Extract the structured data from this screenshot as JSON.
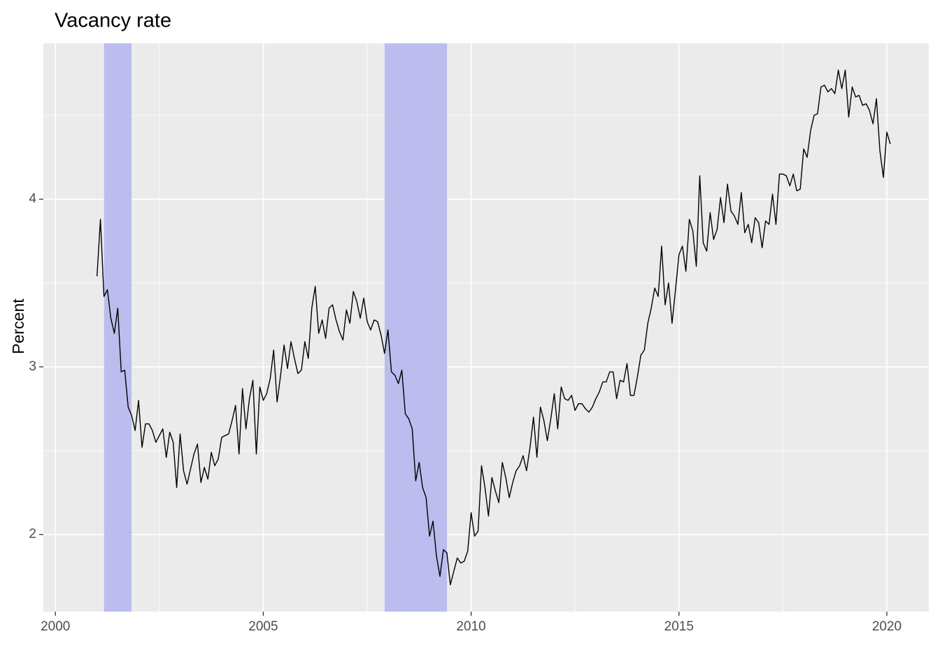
{
  "chart_data": {
    "type": "line",
    "title": "Vacancy rate",
    "y_label": "Percent",
    "color": "#000000",
    "shaded_ranges": [
      {
        "start": 2001.17,
        "end": 2001.83
      },
      {
        "start": 2007.92,
        "end": 2009.42
      }
    ],
    "shade_color": "#bcbcee",
    "xlim": [
      1999.71,
      2021.01
    ],
    "xticks": [
      2000,
      2005,
      2010,
      2015,
      2020
    ],
    "ylim": [
      1.54,
      4.93
    ],
    "yticks": [
      2,
      3,
      4
    ],
    "grid": true,
    "x": [
      2001,
      2001.083,
      2001.167,
      2001.25,
      2001.333,
      2001.417,
      2001.5,
      2001.583,
      2001.667,
      2001.75,
      2001.833,
      2001.917,
      2002,
      2002.083,
      2002.167,
      2002.25,
      2002.333,
      2002.417,
      2002.5,
      2002.583,
      2002.667,
      2002.75,
      2002.833,
      2002.917,
      2003,
      2003.083,
      2003.167,
      2003.25,
      2003.333,
      2003.417,
      2003.5,
      2003.583,
      2003.667,
      2003.75,
      2003.833,
      2003.917,
      2004,
      2004.083,
      2004.167,
      2004.25,
      2004.333,
      2004.417,
      2004.5,
      2004.583,
      2004.667,
      2004.75,
      2004.833,
      2004.917,
      2005,
      2005.083,
      2005.167,
      2005.25,
      2005.333,
      2005.417,
      2005.5,
      2005.583,
      2005.667,
      2005.75,
      2005.833,
      2005.917,
      2006,
      2006.083,
      2006.167,
      2006.25,
      2006.333,
      2006.417,
      2006.5,
      2006.583,
      2006.667,
      2006.75,
      2006.833,
      2006.917,
      2007,
      2007.083,
      2007.167,
      2007.25,
      2007.333,
      2007.417,
      2007.5,
      2007.583,
      2007.667,
      2007.75,
      2007.833,
      2007.917,
      2008,
      2008.083,
      2008.167,
      2008.25,
      2008.333,
      2008.417,
      2008.5,
      2008.583,
      2008.667,
      2008.75,
      2008.833,
      2008.917,
      2009,
      2009.083,
      2009.167,
      2009.25,
      2009.333,
      2009.417,
      2009.5,
      2009.583,
      2009.667,
      2009.75,
      2009.833,
      2009.917,
      2010,
      2010.083,
      2010.167,
      2010.25,
      2010.333,
      2010.417,
      2010.5,
      2010.583,
      2010.667,
      2010.75,
      2010.833,
      2010.917,
      2011,
      2011.083,
      2011.167,
      2011.25,
      2011.333,
      2011.417,
      2011.5,
      2011.583,
      2011.667,
      2011.75,
      2011.833,
      2011.917,
      2012,
      2012.083,
      2012.167,
      2012.25,
      2012.333,
      2012.417,
      2012.5,
      2012.583,
      2012.667,
      2012.75,
      2012.833,
      2012.917,
      2013,
      2013.083,
      2013.167,
      2013.25,
      2013.333,
      2013.417,
      2013.5,
      2013.583,
      2013.667,
      2013.75,
      2013.833,
      2013.917,
      2014,
      2014.083,
      2014.167,
      2014.25,
      2014.333,
      2014.417,
      2014.5,
      2014.583,
      2014.667,
      2014.75,
      2014.833,
      2014.917,
      2015,
      2015.083,
      2015.167,
      2015.25,
      2015.333,
      2015.417,
      2015.5,
      2015.583,
      2015.667,
      2015.75,
      2015.833,
      2015.917,
      2016,
      2016.083,
      2016.167,
      2016.25,
      2016.333,
      2016.417,
      2016.5,
      2016.583,
      2016.667,
      2016.75,
      2016.833,
      2016.917,
      2017,
      2017.083,
      2017.167,
      2017.25,
      2017.333,
      2017.417,
      2017.5,
      2017.583,
      2017.667,
      2017.75,
      2017.833,
      2017.917,
      2018,
      2018.083,
      2018.167,
      2018.25,
      2018.333,
      2018.417,
      2018.5,
      2018.583,
      2018.667,
      2018.75,
      2018.833,
      2018.917,
      2019,
      2019.083,
      2019.167,
      2019.25,
      2019.333,
      2019.417,
      2019.5,
      2019.583,
      2019.667,
      2019.75,
      2019.833,
      2019.917,
      2020,
      2020.083
    ],
    "values": [
      3.54,
      3.88,
      3.42,
      3.46,
      3.29,
      3.2,
      3.35,
      2.97,
      2.98,
      2.76,
      2.71,
      2.62,
      2.8,
      2.52,
      2.66,
      2.66,
      2.62,
      2.55,
      2.59,
      2.63,
      2.46,
      2.61,
      2.55,
      2.28,
      2.6,
      2.38,
      2.3,
      2.39,
      2.48,
      2.54,
      2.31,
      2.4,
      2.33,
      2.49,
      2.41,
      2.45,
      2.58,
      2.59,
      2.6,
      2.68,
      2.77,
      2.48,
      2.87,
      2.63,
      2.81,
      2.92,
      2.48,
      2.88,
      2.8,
      2.84,
      2.93,
      3.1,
      2.79,
      2.95,
      3.13,
      2.99,
      3.15,
      3.05,
      2.96,
      2.98,
      3.15,
      3.05,
      3.35,
      3.48,
      3.2,
      3.28,
      3.17,
      3.35,
      3.37,
      3.28,
      3.21,
      3.16,
      3.34,
      3.26,
      3.45,
      3.39,
      3.29,
      3.41,
      3.27,
      3.22,
      3.28,
      3.27,
      3.19,
      3.08,
      3.22,
      2.97,
      2.95,
      2.9,
      2.98,
      2.72,
      2.69,
      2.63,
      2.32,
      2.43,
      2.28,
      2.22,
      1.99,
      2.08,
      1.87,
      1.75,
      1.91,
      1.89,
      1.7,
      1.78,
      1.86,
      1.83,
      1.84,
      1.9,
      2.13,
      1.99,
      2.02,
      2.41,
      2.28,
      2.11,
      2.34,
      2.26,
      2.19,
      2.43,
      2.34,
      2.22,
      2.31,
      2.38,
      2.41,
      2.47,
      2.38,
      2.52,
      2.7,
      2.46,
      2.76,
      2.68,
      2.56,
      2.69,
      2.84,
      2.63,
      2.88,
      2.81,
      2.8,
      2.83,
      2.74,
      2.78,
      2.78,
      2.75,
      2.73,
      2.76,
      2.81,
      2.85,
      2.91,
      2.91,
      2.97,
      2.97,
      2.81,
      2.92,
      2.91,
      3.02,
      2.83,
      2.83,
      2.94,
      3.07,
      3.1,
      3.26,
      3.35,
      3.47,
      3.42,
      3.72,
      3.37,
      3.5,
      3.26,
      3.46,
      3.67,
      3.72,
      3.57,
      3.88,
      3.81,
      3.6,
      4.14,
      3.74,
      3.69,
      3.92,
      3.76,
      3.82,
      4.01,
      3.86,
      4.09,
      3.93,
      3.9,
      3.85,
      4.04,
      3.8,
      3.85,
      3.74,
      3.89,
      3.86,
      3.71,
      3.87,
      3.85,
      4.03,
      3.85,
      4.15,
      4.15,
      4.14,
      4.08,
      4.15,
      4.05,
      4.06,
      4.3,
      4.25,
      4.41,
      4.5,
      4.51,
      4.67,
      4.68,
      4.64,
      4.66,
      4.63,
      4.77,
      4.66,
      4.77,
      4.49,
      4.67,
      4.61,
      4.62,
      4.56,
      4.57,
      4.53,
      4.45,
      4.6,
      4.29,
      4.13,
      4.4,
      4.33
    ]
  }
}
